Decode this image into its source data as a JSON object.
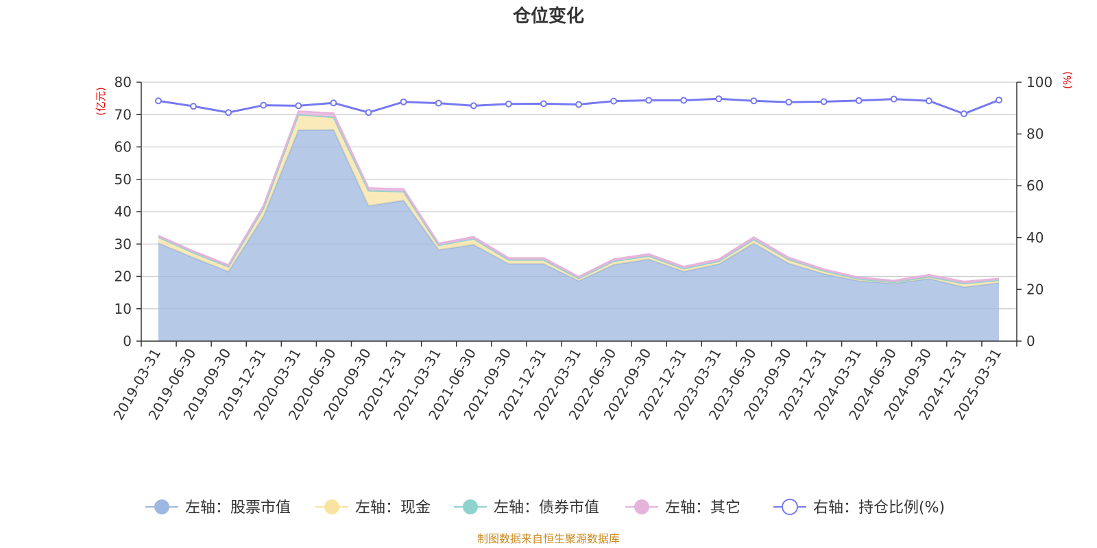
{
  "chart_data": {
    "type": "area",
    "title": "仓位变化",
    "left_unit": "(亿元)",
    "right_unit": "(%)",
    "source": "制图数据来自恒生聚源数据库",
    "categories": [
      "2019-03-31",
      "2019-06-30",
      "2019-09-30",
      "2019-12-31",
      "2020-03-31",
      "2020-06-30",
      "2020-09-30",
      "2020-12-31",
      "2021-03-31",
      "2021-06-30",
      "2021-09-30",
      "2021-12-31",
      "2022-03-31",
      "2022-06-30",
      "2022-09-30",
      "2022-12-31",
      "2023-03-31",
      "2023-06-30",
      "2023-09-30",
      "2023-12-31",
      "2024-03-31",
      "2024-06-30",
      "2024-09-30",
      "2024-12-31",
      "2025-03-31"
    ],
    "y_left_ticks": [
      0,
      10,
      20,
      30,
      40,
      50,
      60,
      70,
      80
    ],
    "y_right_ticks": [
      0,
      20,
      40,
      60,
      80,
      100
    ],
    "ylim_left": [
      0,
      80
    ],
    "ylim_right": [
      0,
      100
    ],
    "grid": true,
    "legend_position": "bottom",
    "series": [
      {
        "name": "左轴：股票市值",
        "axis": "left",
        "color": "#9db8e0",
        "values": [
          30.3,
          25.8,
          21.5,
          38.5,
          65.2,
          65.3,
          41.8,
          43.5,
          28.2,
          29.8,
          23.9,
          23.9,
          18.6,
          23.6,
          25.3,
          21.5,
          23.8,
          30.2,
          24.0,
          20.8,
          18.6,
          17.8,
          19.3,
          16.7,
          18.0
        ]
      },
      {
        "name": "左轴：现金",
        "axis": "left",
        "color": "#f9e3a1",
        "values": [
          1.8,
          1.5,
          1.5,
          2.5,
          4.8,
          3.9,
          4.7,
          2.7,
          1.4,
          1.8,
          1.2,
          1.2,
          0.8,
          1.1,
          1.0,
          0.9,
          0.9,
          1.2,
          1.2,
          0.9,
          0.6,
          0.4,
          0.6,
          1.1,
          0.8
        ]
      },
      {
        "name": "左轴：债券市值",
        "axis": "left",
        "color": "#8fd3cf",
        "values": [
          0,
          0,
          0,
          0,
          0,
          0,
          0,
          0,
          0,
          0,
          0,
          0,
          0,
          0,
          0,
          0,
          0,
          0,
          0,
          0,
          0,
          0,
          0,
          0,
          0
        ]
      },
      {
        "name": "左轴：其它",
        "axis": "left",
        "color": "#e6b3db",
        "values": [
          0.5,
          0.5,
          0.5,
          0.8,
          1.0,
          1.2,
          0.8,
          0.8,
          0.6,
          0.6,
          0.6,
          0.6,
          0.5,
          0.6,
          0.6,
          0.6,
          0.6,
          0.7,
          0.6,
          0.5,
          0.5,
          0.5,
          0.6,
          0.6,
          0.5
        ]
      },
      {
        "name": "右轴：持仓比例(%)",
        "axis": "right",
        "color": "#7679f0",
        "values": [
          92.8,
          90.7,
          88.3,
          91.1,
          90.9,
          92.0,
          88.3,
          92.4,
          91.9,
          90.9,
          91.6,
          91.7,
          91.4,
          92.7,
          93.0,
          93.0,
          93.6,
          92.8,
          92.3,
          92.5,
          92.9,
          93.5,
          92.8,
          87.8,
          93.1
        ]
      }
    ]
  }
}
